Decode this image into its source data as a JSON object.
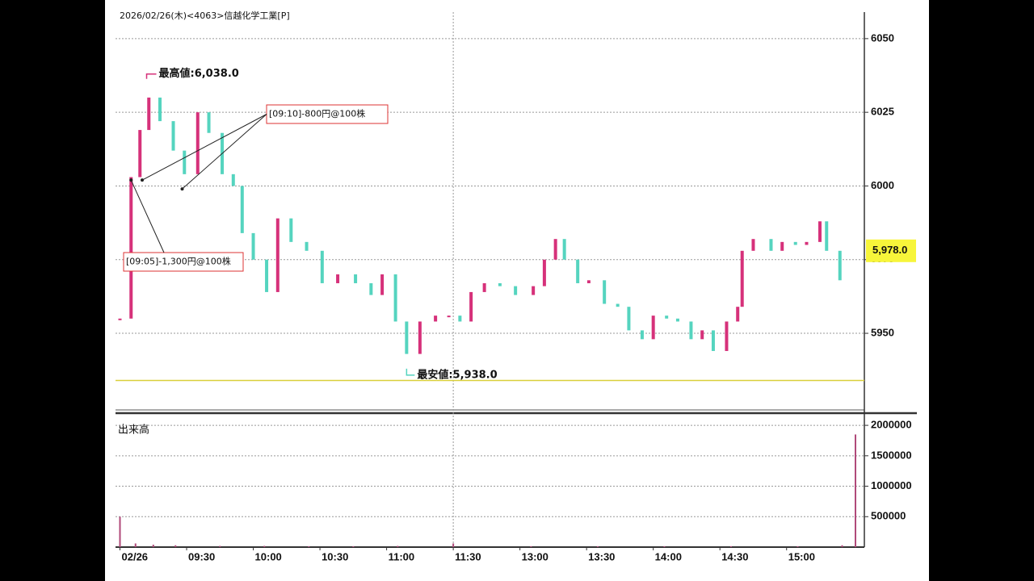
{
  "chart_data": {
    "type": "candle-close",
    "title": "2026/02/26(木)<4063>信越化学工業[P]",
    "up_color": "#d6317a",
    "down_color": "#55d4bf",
    "x": [
      0,
      5,
      9,
      13,
      18,
      24,
      29,
      35,
      40,
      46,
      51,
      55,
      60,
      66,
      71,
      77,
      84,
      91,
      98,
      106,
      113,
      118,
      124,
      129,
      135,
      142,
      148,
      153,
      158,
      164,
      171,
      178,
      186,
      191,
      196,
      200,
      206,
      211,
      218,
      224,
      229,
      235,
      240,
      246,
      251,
      257,
      262,
      267,
      273,
      278,
      280,
      285,
      293,
      298,
      304,
      309,
      315,
      318,
      324
    ],
    "values": [
      5955,
      6003,
      6019,
      6030,
      6022,
      6012,
      6004,
      6025,
      6018,
      6004,
      6000,
      5984,
      5975,
      5964,
      5989,
      5981,
      5978,
      5967,
      5970,
      5967,
      5963,
      5970,
      5954,
      5943,
      5954,
      5956,
      5956,
      5954,
      5964,
      5967,
      5966,
      5963,
      5966,
      5975,
      5982,
      5975,
      5967,
      5968,
      5960,
      5959,
      5951,
      5948,
      5956,
      5955,
      5954,
      5948,
      5951,
      5944,
      5954,
      5959,
      5978,
      5982,
      5978,
      5981,
      5980,
      5981,
      5988,
      5978,
      5968
    ],
    "xlim": [
      -2,
      335
    ],
    "xticks": [
      {
        "value": 0,
        "label": "02/26"
      },
      {
        "value": 30,
        "label": "09:30"
      },
      {
        "value": 60,
        "label": "10:00"
      },
      {
        "value": 90,
        "label": "10:30"
      },
      {
        "value": 120,
        "label": "11:00"
      },
      {
        "value": 150,
        "label": "11:30"
      },
      {
        "value": 180,
        "label": "13:00"
      },
      {
        "value": 210,
        "label": "13:30"
      },
      {
        "value": 240,
        "label": "14:00"
      },
      {
        "value": 270,
        "label": "14:30"
      },
      {
        "value": 300,
        "label": "15:00"
      }
    ],
    "session_break": 150,
    "ylim": [
      5924,
      6059
    ],
    "yticks": [
      5950,
      5975,
      6000,
      6025,
      6050
    ],
    "grid": true,
    "high": {
      "label": "最高値:6,038.0",
      "value": 6038,
      "x": 12
    },
    "low": {
      "label": "最安値:5,938.0",
      "value": 5938,
      "x": 129
    },
    "reference_line": {
      "value": 5934,
      "color": "#d9cf3a"
    },
    "last_price": {
      "value": 5978,
      "label": "5,978.0"
    },
    "trades": [
      {
        "label": "[09:05]-1,300円@100株",
        "targets": [
          {
            "x": 5,
            "y": 6002
          }
        ]
      },
      {
        "label": "[09:10]-800円@100株",
        "targets": [
          {
            "x": 10,
            "y": 6002
          },
          {
            "x": 28,
            "y": 5999
          }
        ]
      }
    ],
    "volume": {
      "name": "出来高",
      "color": "#b04a7a",
      "x": [
        0,
        7,
        15,
        25,
        45,
        65,
        85,
        105,
        125,
        150,
        185,
        215,
        245,
        275,
        305,
        325,
        331
      ],
      "values": [
        500000,
        60000,
        40000,
        30000,
        20000,
        20000,
        15000,
        15000,
        20000,
        60000,
        15000,
        15000,
        15000,
        15000,
        15000,
        30000,
        1850000
      ],
      "ylim": [
        0,
        2200000
      ],
      "yticks": [
        500000,
        1000000,
        1500000,
        2000000
      ]
    }
  }
}
